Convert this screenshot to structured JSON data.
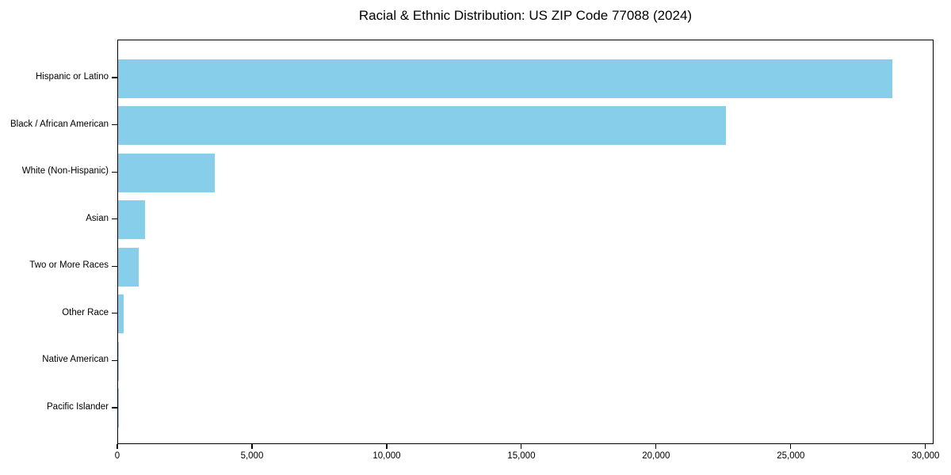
{
  "title": "Racial & Ethnic Distribution: US ZIP Code 77088 (2024)",
  "colors": {
    "bar": "#87CEEB",
    "axis": "#000000",
    "text": "#000000",
    "background": "#ffffff"
  },
  "chart_data": {
    "type": "bar",
    "orientation": "horizontal",
    "title": "Racial & Ethnic Distribution: US ZIP Code 77088 (2024)",
    "xlabel": "",
    "ylabel": "",
    "categories": [
      "Hispanic or Latino",
      "Black / African American",
      "White (Non-Hispanic)",
      "Asian",
      "Two or More Races",
      "Other Race",
      "Native American",
      "Pacific Islander"
    ],
    "values": [
      28800,
      22600,
      3600,
      1000,
      780,
      200,
      30,
      10
    ],
    "xlim": [
      0,
      30300
    ],
    "x_ticks": [
      {
        "value": 0,
        "label": "0"
      },
      {
        "value": 5000,
        "label": "5,000"
      },
      {
        "value": 10000,
        "label": "10,000"
      },
      {
        "value": 15000,
        "label": "15,000"
      },
      {
        "value": 20000,
        "label": "20,000"
      },
      {
        "value": 25000,
        "label": "25,000"
      },
      {
        "value": 30000,
        "label": "30,000"
      }
    ],
    "grid": false,
    "legend": false,
    "bar_color": "#87CEEB"
  }
}
